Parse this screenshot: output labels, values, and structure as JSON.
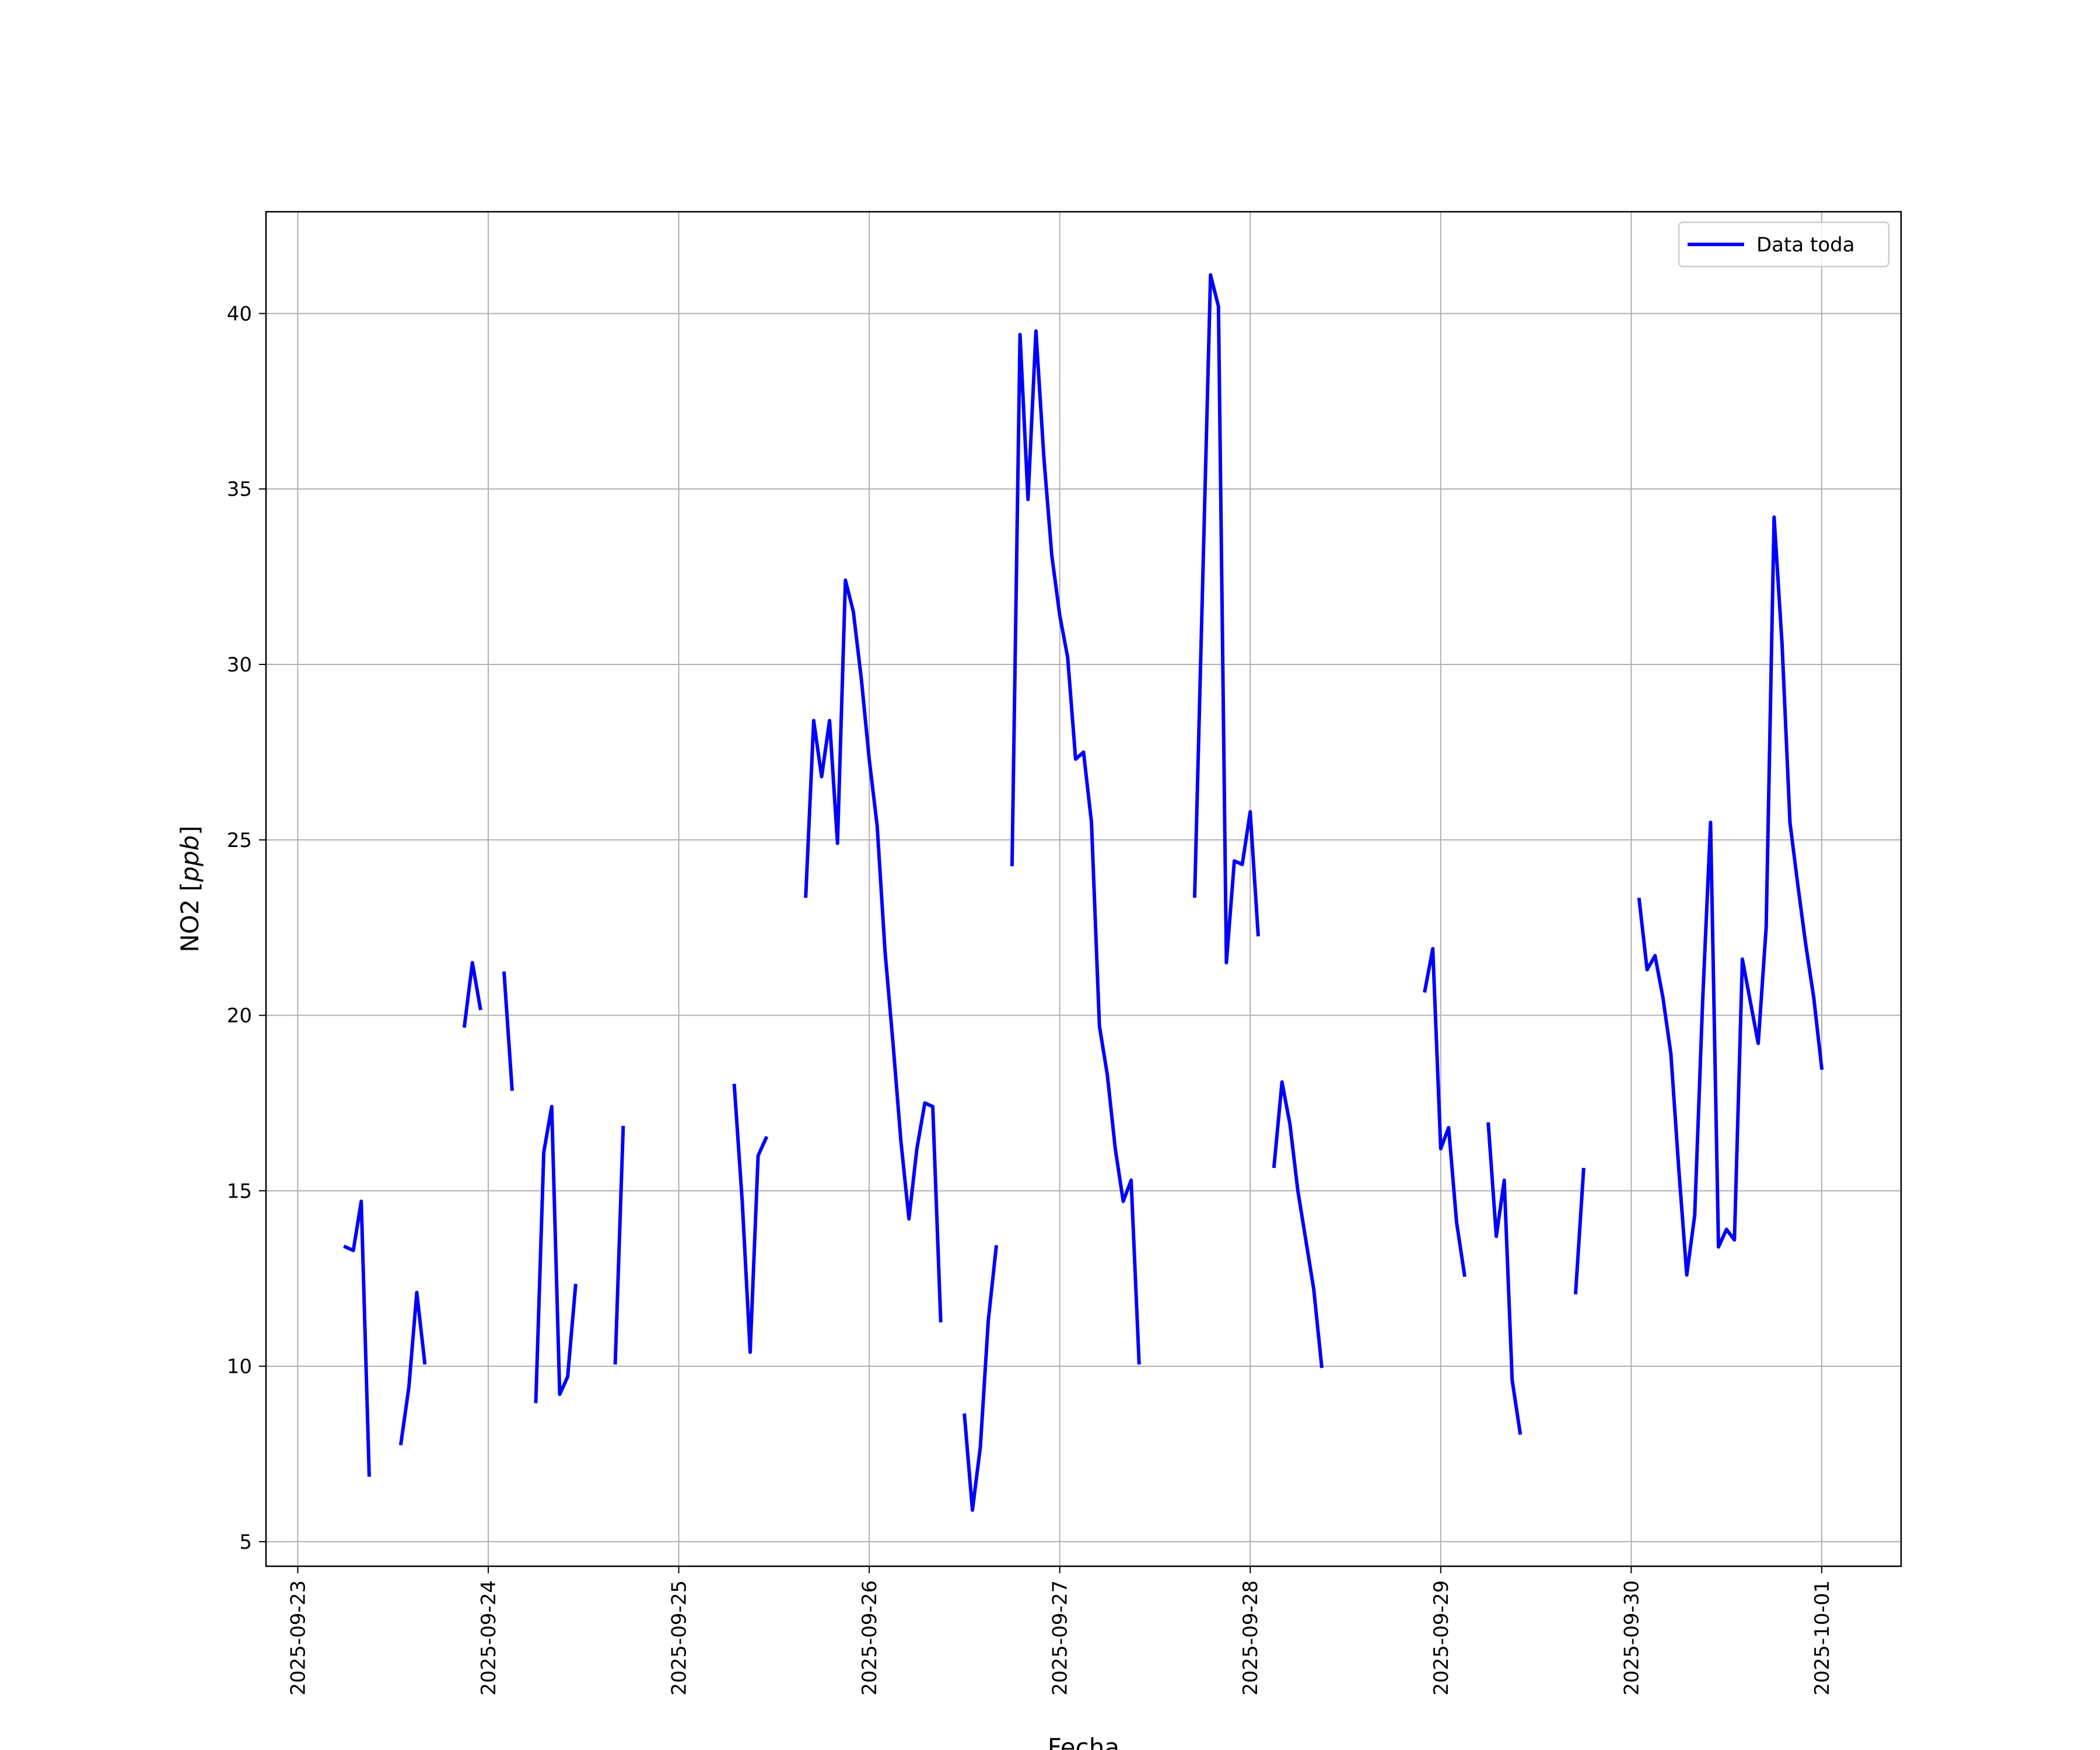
{
  "chart_data": {
    "type": "line",
    "xlabel": "Fecha",
    "ylabel_main": "NO2 [",
    "ylabel_unit": "ppb",
    "ylabel_close": "]",
    "grid": true,
    "legend_position": "top-right",
    "x_range": [
      "2025-09-22T20:00",
      "2025-10-01T10:00"
    ],
    "ylim": [
      4.3,
      42.9
    ],
    "x_ticks": [
      "2025-09-23",
      "2025-09-24",
      "2025-09-25",
      "2025-09-26",
      "2025-09-27",
      "2025-09-28",
      "2025-09-29",
      "2025-09-30",
      "2025-10-01"
    ],
    "y_ticks": [
      "5",
      "10",
      "15",
      "20",
      "25",
      "30",
      "35",
      "40"
    ],
    "series": [
      {
        "name": "Data toda",
        "color": "#0000ff",
        "segments": [
          [
            [
              "2025-09-23T06:00",
              13.4
            ],
            [
              "2025-09-23T07:00",
              13.3
            ],
            [
              "2025-09-23T08:00",
              14.7
            ],
            [
              "2025-09-23T09:00",
              6.9
            ]
          ],
          [
            [
              "2025-09-23T13:00",
              7.8
            ],
            [
              "2025-09-23T14:00",
              9.4
            ],
            [
              "2025-09-23T15:00",
              12.1
            ],
            [
              "2025-09-23T16:00",
              10.1
            ]
          ],
          [
            [
              "2025-09-23T21:00",
              19.7
            ],
            [
              "2025-09-23T22:00",
              21.5
            ],
            [
              "2025-09-23T23:00",
              20.2
            ]
          ],
          [
            [
              "2025-09-24T02:00",
              21.2
            ],
            [
              "2025-09-24T03:00",
              17.9
            ]
          ],
          [
            [
              "2025-09-24T06:00",
              9.0
            ],
            [
              "2025-09-24T07:00",
              16.1
            ],
            [
              "2025-09-24T08:00",
              17.4
            ],
            [
              "2025-09-24T09:00",
              9.2
            ],
            [
              "2025-09-24T10:00",
              9.7
            ],
            [
              "2025-09-24T11:00",
              12.3
            ]
          ],
          [
            [
              "2025-09-24T16:00",
              10.1
            ],
            [
              "2025-09-24T17:00",
              16.8
            ]
          ],
          [
            [
              "2025-09-25T07:00",
              18.0
            ],
            [
              "2025-09-25T08:00",
              14.7
            ],
            [
              "2025-09-25T09:00",
              10.4
            ],
            [
              "2025-09-25T10:00",
              16.0
            ],
            [
              "2025-09-25T11:00",
              16.5
            ]
          ],
          [
            [
              "2025-09-25T16:00",
              23.4
            ],
            [
              "2025-09-25T17:00",
              28.4
            ],
            [
              "2025-09-25T18:00",
              26.8
            ],
            [
              "2025-09-25T19:00",
              28.4
            ],
            [
              "2025-09-25T20:00",
              24.9
            ],
            [
              "2025-09-25T21:00",
              32.4
            ],
            [
              "2025-09-25T22:00",
              31.5
            ],
            [
              "2025-09-25T23:00",
              29.6
            ],
            [
              "2025-09-26T00:00",
              27.3
            ],
            [
              "2025-09-26T01:00",
              25.4
            ],
            [
              "2025-09-26T02:00",
              21.8
            ],
            [
              "2025-09-26T03:00",
              19.2
            ],
            [
              "2025-09-26T04:00",
              16.4
            ],
            [
              "2025-09-26T05:00",
              14.2
            ],
            [
              "2025-09-26T06:00",
              16.2
            ],
            [
              "2025-09-26T07:00",
              17.5
            ],
            [
              "2025-09-26T08:00",
              17.4
            ],
            [
              "2025-09-26T09:00",
              11.3
            ]
          ],
          [
            [
              "2025-09-26T12:00",
              8.6
            ],
            [
              "2025-09-26T13:00",
              5.9
            ],
            [
              "2025-09-26T14:00",
              7.7
            ],
            [
              "2025-09-26T15:00",
              11.3
            ],
            [
              "2025-09-26T16:00",
              13.4
            ]
          ],
          [
            [
              "2025-09-26T18:00",
              24.3
            ],
            [
              "2025-09-26T19:00",
              39.4
            ],
            [
              "2025-09-26T20:00",
              34.7
            ],
            [
              "2025-09-26T21:00",
              39.5
            ],
            [
              "2025-09-26T22:00",
              35.9
            ],
            [
              "2025-09-26T23:00",
              33.1
            ],
            [
              "2025-09-27T00:00",
              31.4
            ],
            [
              "2025-09-27T01:00",
              30.2
            ],
            [
              "2025-09-27T02:00",
              27.3
            ],
            [
              "2025-09-27T03:00",
              27.5
            ],
            [
              "2025-09-27T04:00",
              25.5
            ],
            [
              "2025-09-27T05:00",
              19.7
            ],
            [
              "2025-09-27T06:00",
              18.3
            ],
            [
              "2025-09-27T07:00",
              16.2
            ],
            [
              "2025-09-27T08:00",
              14.7
            ],
            [
              "2025-09-27T09:00",
              15.3
            ],
            [
              "2025-09-27T10:00",
              10.1
            ]
          ],
          [
            [
              "2025-09-27T17:00",
              23.4
            ],
            [
              "2025-09-27T19:00",
              41.1
            ],
            [
              "2025-09-27T20:00",
              40.2
            ],
            [
              "2025-09-27T21:00",
              21.5
            ],
            [
              "2025-09-27T22:00",
              24.4
            ],
            [
              "2025-09-27T23:00",
              24.3
            ],
            [
              "2025-09-28T00:00",
              25.8
            ],
            [
              "2025-09-28T01:00",
              22.3
            ]
          ],
          [
            [
              "2025-09-28T03:00",
              15.7
            ],
            [
              "2025-09-28T04:00",
              18.1
            ],
            [
              "2025-09-28T05:00",
              16.9
            ],
            [
              "2025-09-28T06:00",
              15.0
            ],
            [
              "2025-09-28T07:00",
              13.6
            ],
            [
              "2025-09-28T08:00",
              12.2
            ],
            [
              "2025-09-28T09:00",
              10.0
            ]
          ],
          [
            [
              "2025-09-28T22:00",
              20.7
            ],
            [
              "2025-09-28T23:00",
              21.9
            ],
            [
              "2025-09-29T00:00",
              16.2
            ],
            [
              "2025-09-29T01:00",
              16.8
            ],
            [
              "2025-09-29T02:00",
              14.1
            ],
            [
              "2025-09-29T03:00",
              12.6
            ]
          ],
          [
            [
              "2025-09-29T06:00",
              16.9
            ],
            [
              "2025-09-29T07:00",
              13.7
            ],
            [
              "2025-09-29T08:00",
              15.3
            ],
            [
              "2025-09-29T09:00",
              9.6
            ],
            [
              "2025-09-29T10:00",
              8.1
            ]
          ],
          [
            [
              "2025-09-29T17:00",
              12.1
            ],
            [
              "2025-09-29T18:00",
              15.6
            ]
          ],
          [
            [
              "2025-09-30T01:00",
              23.3
            ],
            [
              "2025-09-30T02:00",
              21.3
            ],
            [
              "2025-09-30T03:00",
              21.7
            ],
            [
              "2025-09-30T04:00",
              20.5
            ],
            [
              "2025-09-30T05:00",
              18.9
            ],
            [
              "2025-09-30T06:00",
              15.6
            ],
            [
              "2025-09-30T07:00",
              12.6
            ],
            [
              "2025-09-30T08:00",
              14.3
            ],
            [
              "2025-09-30T09:00",
              20.4
            ],
            [
              "2025-09-30T10:00",
              25.5
            ],
            [
              "2025-09-30T11:00",
              13.4
            ],
            [
              "2025-09-30T12:00",
              13.9
            ],
            [
              "2025-09-30T13:00",
              13.6
            ],
            [
              "2025-09-30T14:00",
              21.6
            ],
            [
              "2025-09-30T15:00",
              20.4
            ],
            [
              "2025-09-30T16:00",
              19.2
            ],
            [
              "2025-09-30T17:00",
              22.5
            ],
            [
              "2025-09-30T18:00",
              34.2
            ],
            [
              "2025-09-30T19:00",
              30.6
            ],
            [
              "2025-09-30T20:00",
              25.5
            ],
            [
              "2025-09-30T21:00",
              23.7
            ],
            [
              "2025-09-30T22:00",
              22.0
            ],
            [
              "2025-09-30T23:00",
              20.5
            ],
            [
              "2025-10-01T00:00",
              18.5
            ]
          ]
        ]
      }
    ]
  }
}
